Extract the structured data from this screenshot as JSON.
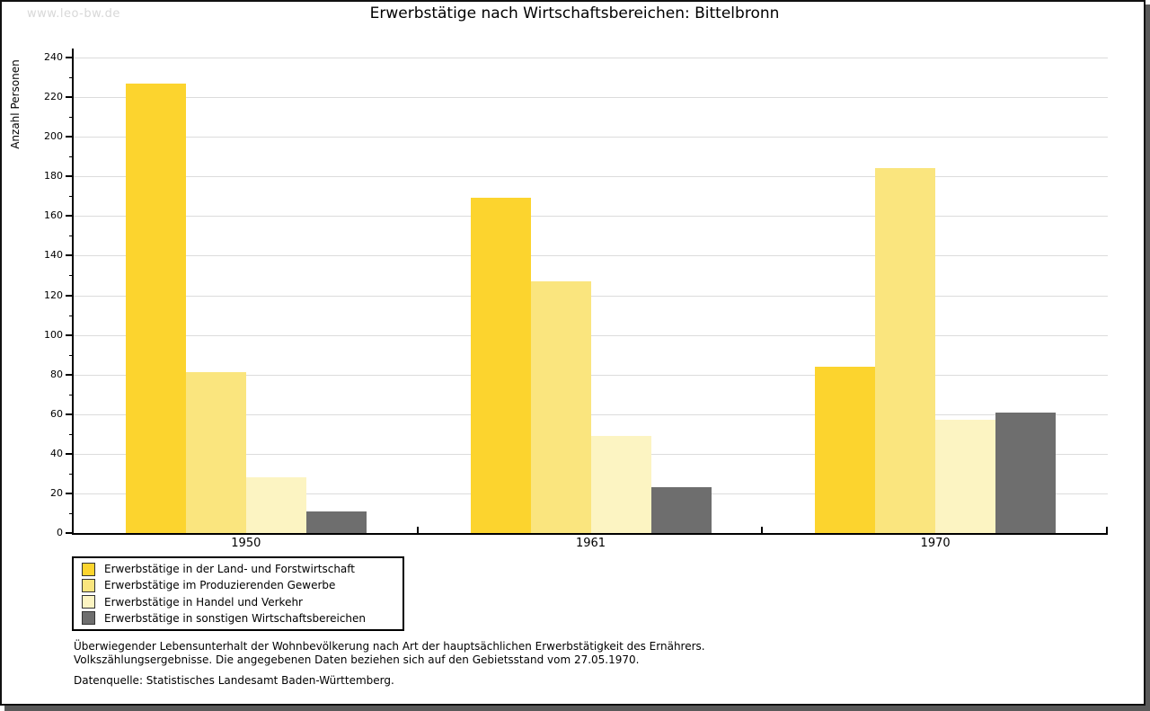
{
  "watermark": "www.leo-bw.de",
  "title": "Erwerbstätige nach Wirtschaftsbereichen: Bittelbronn",
  "chart_data": {
    "type": "bar",
    "title": "Erwerbstätige nach Wirtschaftsbereichen: Bittelbronn",
    "xlabel": "",
    "ylabel": "Anzahl Personen",
    "ylim": [
      0,
      240
    ],
    "ytick_step": 20,
    "grid": true,
    "legend_position": "bottom-left",
    "categories": [
      "1950",
      "1961",
      "1970"
    ],
    "series": [
      {
        "name": "Erwerbstätige in der Land- und Forstwirtschaft",
        "color": "#FCD42E",
        "values": [
          227,
          169,
          84
        ]
      },
      {
        "name": "Erwerbstätige im Produzierenden Gewerbe",
        "color": "#FAE57E",
        "values": [
          81,
          127,
          184
        ]
      },
      {
        "name": "Erwerbstätige in Handel und Verkehr",
        "color": "#FCF4C2",
        "values": [
          28,
          49,
          57
        ]
      },
      {
        "name": "Erwerbstätige in sonstigen Wirtschaftsbereichen",
        "color": "#6E6E6E",
        "values": [
          11,
          23,
          61
        ]
      }
    ]
  },
  "footnotes": {
    "line1": "Überwiegender Lebensunterhalt der Wohnbevölkerung nach Art der hauptsächlichen Erwerbstätigkeit des Ernährers.",
    "line2": "Volkszählungsergebnisse. Die angegebenen Daten beziehen sich auf den Gebietsstand vom 27.05.1970.",
    "source": "Datenquelle: Statistisches Landesamt Baden-Württemberg."
  }
}
